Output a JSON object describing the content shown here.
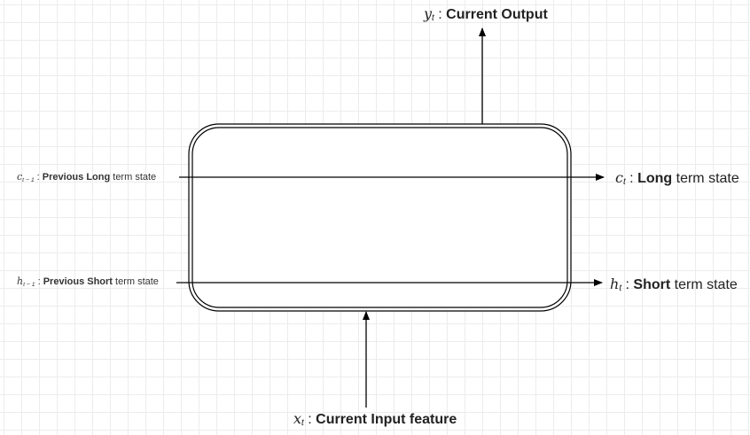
{
  "labels": {
    "output": {
      "symbol": "y",
      "subscript": "t",
      "separator": " : ",
      "text": "Current Output"
    },
    "input": {
      "symbol": "x",
      "subscript": "t",
      "separator": " : ",
      "text": "Current Input feature"
    },
    "prev_long": {
      "symbol": "c",
      "subscript": "t − 1",
      "separator": " : ",
      "bold_text": "Previous Long",
      "text": " term state"
    },
    "prev_short": {
      "symbol": "h",
      "subscript": "t − 1",
      "separator": " : ",
      "bold_text": "Previous Short",
      "text": " term state"
    },
    "long": {
      "symbol": "c",
      "subscript": "t",
      "separator": " : ",
      "bold_text": "Long",
      "text": " term state"
    },
    "short": {
      "symbol": "h",
      "subscript": "t",
      "separator": " : ",
      "bold_text": "Short",
      "text": " term state"
    }
  },
  "colors": {
    "stroke": "#000000",
    "background": "#ffffff",
    "grid": "#ececec"
  }
}
